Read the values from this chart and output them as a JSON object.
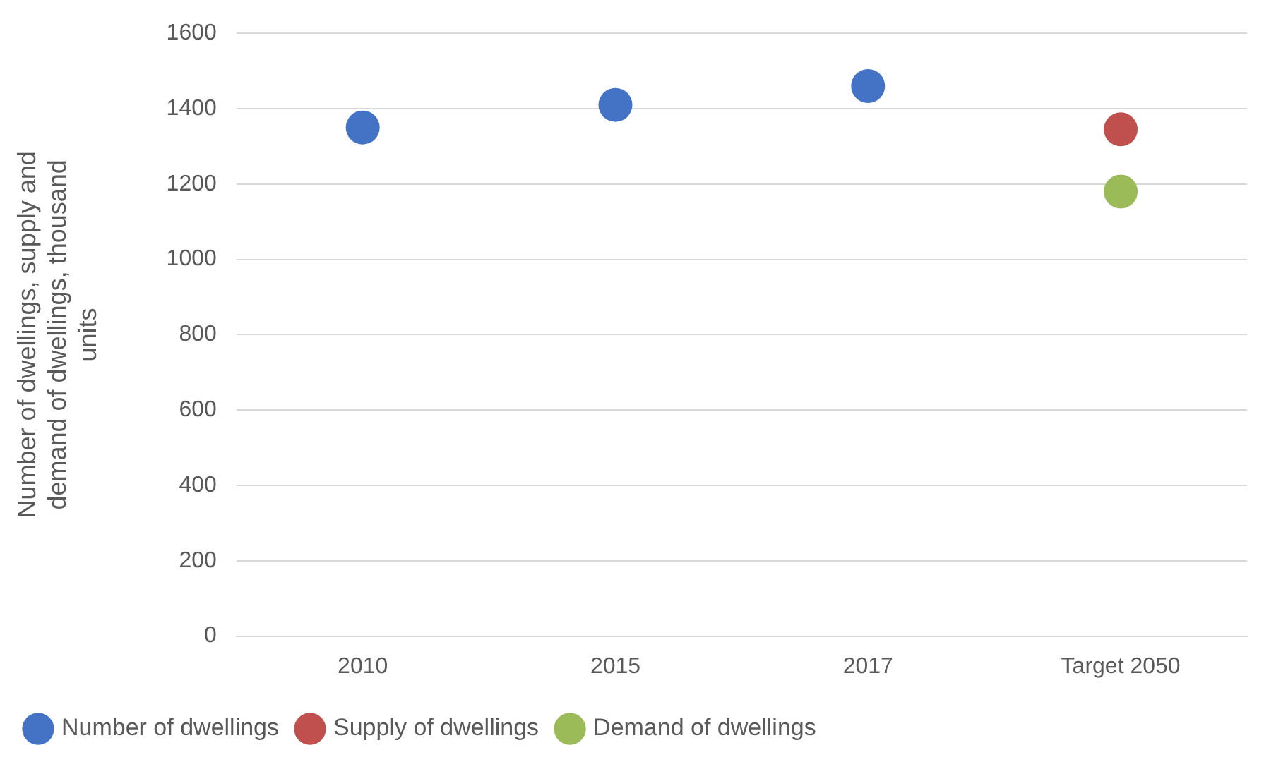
{
  "chart_data": {
    "type": "scatter",
    "ylabel": "Number of dwellings, supply and demand of dwellings, thousand units",
    "categories": [
      "2010",
      "2015",
      "2017",
      "Target 2050"
    ],
    "series": [
      {
        "name": "Number of dwellings",
        "color": "#4472c4",
        "values": [
          1350,
          1410,
          1460,
          null
        ]
      },
      {
        "name": "Supply of dwellings",
        "color": "#c0504d",
        "values": [
          null,
          null,
          null,
          1345
        ]
      },
      {
        "name": "Demand of dwellings",
        "color": "#9bbb59",
        "values": [
          null,
          null,
          null,
          1180
        ]
      }
    ],
    "ylim": [
      0,
      1600
    ],
    "yticks": [
      0,
      200,
      400,
      600,
      800,
      1000,
      1200,
      1400,
      1600
    ],
    "grid": "y",
    "legend": "bottom",
    "marker": "circle"
  }
}
